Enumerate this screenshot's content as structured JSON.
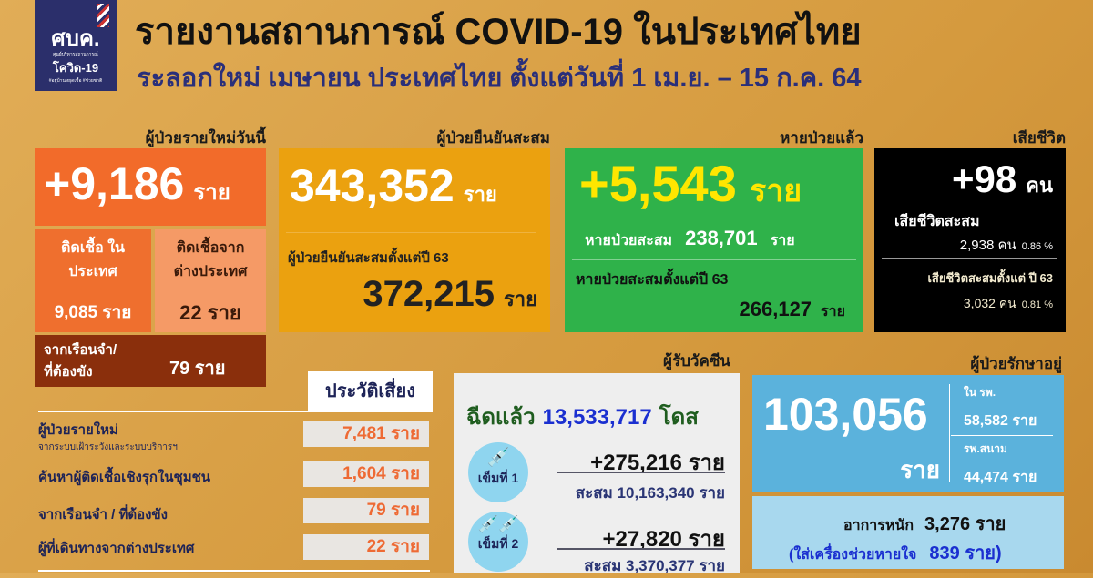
{
  "logo": {
    "acronym": "ศบค.",
    "subtitle": "ศูนย์บริหารสถานการณ์",
    "name": "โควิด-19",
    "tagline": "#อยู่บ้านหยุดเชื้อ #ช่วยชาติ"
  },
  "title": "รายงานสถานการณ์ COVID-19 ในประเทศไทย",
  "subtitle": "ระลอกใหม่ เมษายน ประเทศไทย ตั้งแต่วันที่ 1 เม.ย. – 15 ก.ค. 64",
  "new_cases": {
    "header": "ผู้ป่วยรายใหม่วันนี้",
    "value": "+9,186",
    "unit": "ราย",
    "domestic_label": "ติดเชื้อ ในประเทศ",
    "domestic_value": "9,085 ราย",
    "imported_label": "ติดเชื้อจาก ต่างประเทศ",
    "imported_value": "22 ราย",
    "prison_label1": "จากเรือนจำ/",
    "prison_label2": "ที่ต้องขัง",
    "prison_value": "79 ราย"
  },
  "confirmed": {
    "header": "ผู้ป่วยยืนยันสะสม",
    "value": "343,352",
    "unit": "ราย",
    "since_label": "ผู้ป่วยยืนยันสะสมตั้งแต่ปี 63",
    "since_value": "372,215",
    "since_unit": "ราย"
  },
  "recovered": {
    "header": "หายป่วยแล้ว",
    "value": "+5,543",
    "unit": "ราย",
    "cum_label": "หายป่วยสะสม",
    "cum_value": "238,701",
    "cum_unit": "ราย",
    "since_label": "หายป่วยสะสมตั้งแต่ปี 63",
    "since_value": "266,127",
    "since_unit": "ราย"
  },
  "deaths": {
    "header": "เสียชีวิต",
    "value": "+98",
    "unit": "คน",
    "cum_label": "เสียชีวิตสะสม",
    "cum_value": "2,938 คน",
    "cum_pct": "0.86 %",
    "since_label": "เสียชีวิตสะสมตั้งแต่ ปี 63",
    "since_value": "3,032 คน",
    "since_pct": "0.81 %"
  },
  "risk": {
    "header": "ประวัติเสี่ยง",
    "rows": [
      {
        "label": "ผู้ป่วยรายใหม่",
        "sub": "จากระบบเฝ้าระวังและระบบบริการฯ",
        "value": "7,481 ราย"
      },
      {
        "label": "ค้นหาผู้ติดเชื้อเชิงรุกในชุมชน",
        "value": "1,604 ราย"
      },
      {
        "label": "จากเรือนจำ / ที่ต้องขัง",
        "value": "79 ราย"
      },
      {
        "label": "ผู้ที่เดินทางจากต่างประเทศ",
        "value": "22 ราย"
      }
    ]
  },
  "vaccine": {
    "header": "ผู้รับวัคซีน",
    "injected_label": "ฉีดแล้ว",
    "injected_value": "13,533,717",
    "injected_unit": "โดส",
    "doses": [
      {
        "label": "เข็มที่ 1",
        "new": "+275,216 ราย",
        "cum": "สะสม 10,163,340 ราย"
      },
      {
        "label": "เข็มที่ 2",
        "new": "+27,820 ราย",
        "cum": "สะสม 3,370,377 ราย"
      }
    ]
  },
  "treatment": {
    "header": "ผู้ป่วยรักษาอยู่",
    "value": "103,056",
    "unit": "ราย",
    "hospital_label": "ใน รพ.",
    "hospital_value": "58,582 ราย",
    "field_label": "รพ.สนาม",
    "field_value": "44,474 ราย",
    "severe_label": "อาการหนัก",
    "severe_value": "3,276 ราย",
    "vent_label": "(ใส่เครื่องช่วยหายใจ",
    "vent_value": "839 ราย)"
  },
  "colors": {
    "background": "#d9a24a",
    "navy": "#2b2f6b",
    "orange": "#f26b2a",
    "yellow": "#eba10f",
    "green": "#2fb24a",
    "black": "#000000",
    "blue": "#5bb2dc"
  }
}
